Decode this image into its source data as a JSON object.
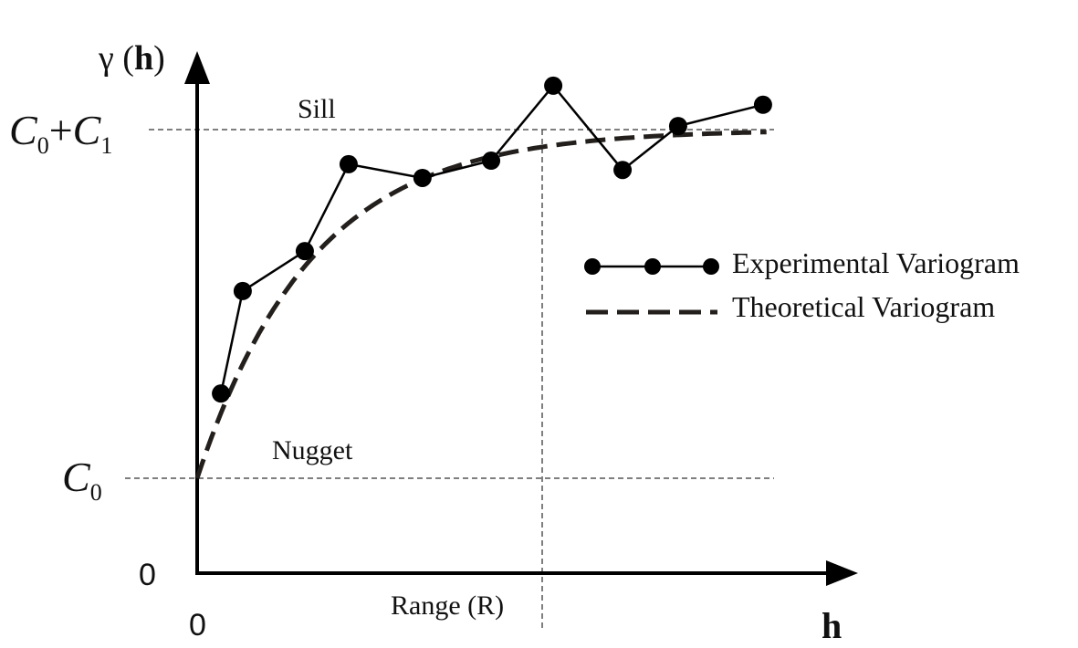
{
  "chart_data": {
    "type": "line",
    "title": "",
    "xlabel": "h",
    "ylabel": "γ (h)",
    "x_origin_label": "0",
    "y_origin_label": "0",
    "xlim": [
      0,
      1.92
    ],
    "ylim": [
      0,
      1.18
    ],
    "grid": false,
    "y_reference_lines": [
      {
        "name": "sill",
        "value": 1.0,
        "tick_label_main": "C",
        "tick_label_sub": "0",
        "tick_label_plus": "+",
        "tick_label_main2": "C",
        "tick_label_sub2": "1",
        "annotation": "Sill"
      },
      {
        "name": "nugget",
        "value": 0.214,
        "tick_label_main": "C",
        "tick_label_sub": "0",
        "annotation": "Nugget"
      }
    ],
    "x_reference_lines": [
      {
        "name": "range",
        "value": 1.0,
        "annotation": "Range (R)"
      }
    ],
    "legend_position": "right",
    "series": [
      {
        "name": "Experimental Variogram",
        "style": "solid-line-with-dots",
        "x": [
          0.069,
          0.132,
          0.312,
          0.439,
          0.653,
          0.852,
          1.032,
          1.233,
          1.394,
          1.64
        ],
        "y": [
          0.405,
          0.636,
          0.726,
          0.922,
          0.891,
          0.93,
          1.099,
          0.909,
          1.008,
          1.056
        ]
      },
      {
        "name": "Theoretical Variogram",
        "style": "dashed",
        "model": "exponential",
        "nugget": 0.214,
        "sill": 1.0,
        "range": 1.0,
        "x_end": 1.65
      }
    ]
  },
  "colors": {
    "axis": "#000000",
    "reference_line": "#555555",
    "series": "#000000",
    "theoretical": "#231f1c"
  }
}
